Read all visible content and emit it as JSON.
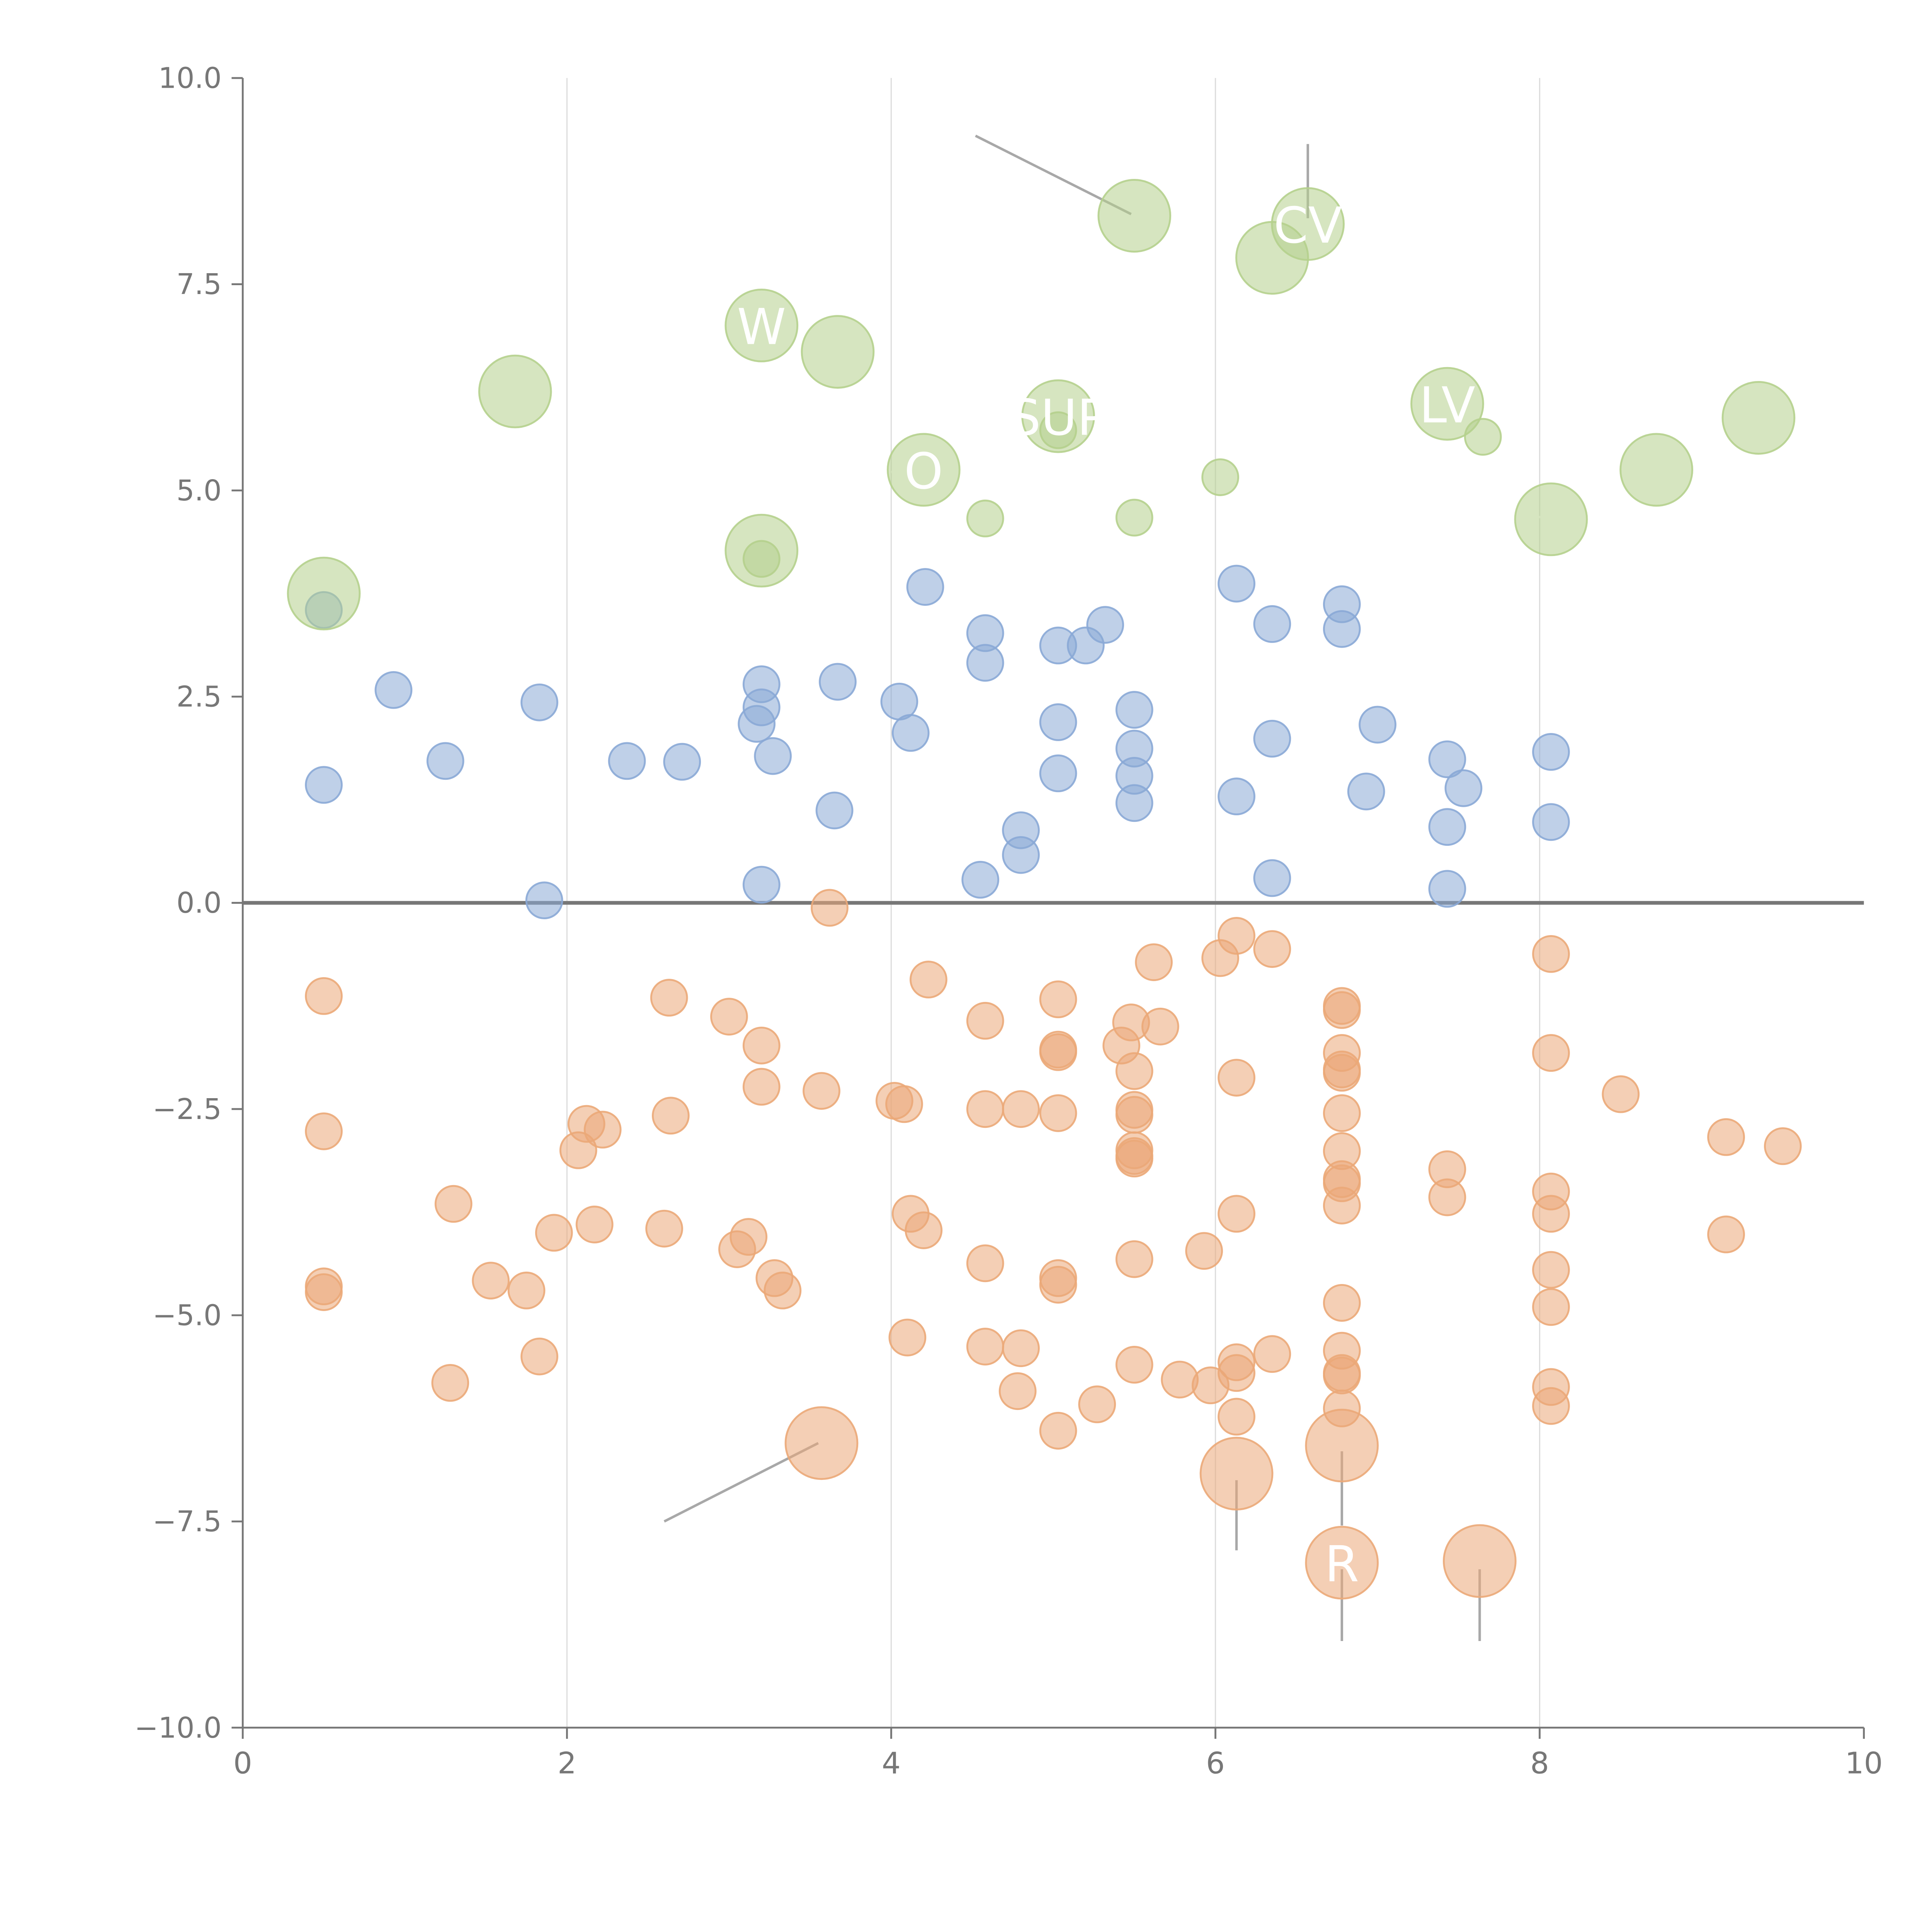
{
  "chart_data": {
    "type": "scatter",
    "title": "",
    "xlabel": "",
    "ylabel": "",
    "xlim": [
      0,
      10
    ],
    "ylim": [
      -10,
      10
    ],
    "x_ticks": [
      "0",
      "2",
      "4",
      "6",
      "8",
      "10"
    ],
    "y_ticks": [
      "−10.0",
      "−7.5",
      "−5.0",
      "−2.5",
      "0.0",
      "2.5",
      "5.0",
      "7.5",
      "10.0"
    ],
    "vertical_gridlines_at": [
      2,
      4,
      6,
      8
    ],
    "zero_line": true,
    "colors": {
      "blue": "#8aa9d6",
      "orange": "#eba878",
      "green": "#b5d08d",
      "axis": "#777777",
      "grid": "#dddddd",
      "zero": "#777777",
      "leader": "#999999"
    },
    "series": [
      {
        "color_key": "blue",
        "points": [
          [
            0.5,
            3.55
          ],
          [
            0.5,
            1.43
          ],
          [
            0.93,
            2.58
          ],
          [
            1.25,
            1.72
          ],
          [
            1.83,
            2.43
          ],
          [
            1.86,
            0.03
          ],
          [
            2.37,
            1.72
          ],
          [
            2.71,
            1.71
          ],
          [
            3.17,
            2.17
          ],
          [
            3.2,
            2.65
          ],
          [
            3.2,
            2.37
          ],
          [
            3.2,
            0.22
          ],
          [
            3.27,
            1.78
          ],
          [
            3.65,
            1.12
          ],
          [
            3.67,
            2.68
          ],
          [
            4.05,
            2.44
          ],
          [
            4.12,
            2.06
          ],
          [
            4.21,
            3.83
          ],
          [
            4.55,
            0.28
          ],
          [
            4.58,
            3.27
          ],
          [
            4.58,
            2.91
          ],
          [
            4.8,
            0.88
          ],
          [
            4.8,
            0.58
          ],
          [
            5.03,
            3.12
          ],
          [
            5.03,
            2.19
          ],
          [
            5.03,
            1.57
          ],
          [
            5.2,
            3.12
          ],
          [
            5.32,
            3.37
          ],
          [
            5.5,
            2.34
          ],
          [
            5.5,
            1.87
          ],
          [
            5.5,
            1.54
          ],
          [
            5.5,
            1.21
          ],
          [
            6.13,
            3.87
          ],
          [
            6.13,
            1.29
          ],
          [
            6.35,
            3.38
          ],
          [
            6.35,
            1.99
          ],
          [
            6.35,
            0.3
          ],
          [
            6.78,
            3.62
          ],
          [
            6.78,
            3.32
          ],
          [
            6.93,
            1.35
          ],
          [
            7.0,
            2.16
          ],
          [
            7.43,
            1.74
          ],
          [
            7.43,
            0.92
          ],
          [
            7.43,
            0.17
          ],
          [
            7.53,
            1.39
          ],
          [
            8.07,
            1.83
          ],
          [
            8.07,
            0.98
          ]
        ]
      },
      {
        "color_key": "orange",
        "points": [
          [
            0.5,
            -1.13
          ],
          [
            0.5,
            -2.77
          ],
          [
            0.5,
            -4.65
          ],
          [
            0.5,
            -4.72
          ],
          [
            1.28,
            -5.82
          ],
          [
            1.3,
            -3.65
          ],
          [
            1.53,
            -4.58
          ],
          [
            1.75,
            -4.7
          ],
          [
            1.83,
            -5.5
          ],
          [
            1.92,
            -4.0
          ],
          [
            2.07,
            -3.0
          ],
          [
            2.12,
            -2.68
          ],
          [
            2.17,
            -3.9
          ],
          [
            2.22,
            -2.75
          ],
          [
            2.6,
            -3.95
          ],
          [
            2.63,
            -1.15
          ],
          [
            2.64,
            -2.58
          ],
          [
            3.0,
            -1.38
          ],
          [
            3.05,
            -4.2
          ],
          [
            3.12,
            -4.05
          ],
          [
            3.2,
            -1.73
          ],
          [
            3.2,
            -2.23
          ],
          [
            3.28,
            -4.55
          ],
          [
            3.33,
            -4.7
          ],
          [
            3.57,
            -2.28
          ],
          [
            3.62,
            -0.06
          ],
          [
            4.02,
            -2.4
          ],
          [
            4.08,
            -2.44
          ],
          [
            4.1,
            -5.27
          ],
          [
            4.12,
            -3.77
          ],
          [
            4.2,
            -3.97
          ],
          [
            4.23,
            -0.93
          ],
          [
            4.58,
            -1.43
          ],
          [
            4.58,
            -2.5
          ],
          [
            4.58,
            -4.37
          ],
          [
            4.58,
            -5.38
          ],
          [
            4.78,
            -5.92
          ],
          [
            4.8,
            -2.5
          ],
          [
            4.8,
            -5.4
          ],
          [
            5.03,
            -1.17
          ],
          [
            5.03,
            -1.78
          ],
          [
            5.03,
            -1.81
          ],
          [
            5.03,
            -2.55
          ],
          [
            5.03,
            -4.55
          ],
          [
            5.03,
            -4.63
          ],
          [
            5.03,
            -6.4
          ],
          [
            5.27,
            -6.08
          ],
          [
            5.42,
            -1.73
          ],
          [
            5.48,
            -1.45
          ],
          [
            5.5,
            -2.04
          ],
          [
            5.5,
            -2.51
          ],
          [
            5.5,
            -2.57
          ],
          [
            5.5,
            -3.0
          ],
          [
            5.5,
            -3.07
          ],
          [
            5.5,
            -3.1
          ],
          [
            5.5,
            -4.32
          ],
          [
            5.5,
            -5.6
          ],
          [
            5.62,
            -0.72
          ],
          [
            5.66,
            -1.5
          ],
          [
            5.78,
            -5.78
          ],
          [
            5.93,
            -4.22
          ],
          [
            5.97,
            -5.85
          ],
          [
            6.03,
            -0.67
          ],
          [
            6.13,
            -0.4
          ],
          [
            6.13,
            -2.12
          ],
          [
            6.13,
            -3.77
          ],
          [
            6.13,
            -5.57
          ],
          [
            6.13,
            -5.7
          ],
          [
            6.13,
            -6.23
          ],
          [
            6.35,
            -0.56
          ],
          [
            6.35,
            -5.47
          ],
          [
            6.78,
            -1.25
          ],
          [
            6.78,
            -1.3
          ],
          [
            6.78,
            -1.82
          ],
          [
            6.78,
            -2.02
          ],
          [
            6.78,
            -2.06
          ],
          [
            6.78,
            -2.55
          ],
          [
            6.78,
            -3.01
          ],
          [
            6.78,
            -3.35
          ],
          [
            6.78,
            -3.4
          ],
          [
            6.78,
            -3.67
          ],
          [
            6.78,
            -4.85
          ],
          [
            6.78,
            -5.43
          ],
          [
            6.78,
            -5.7
          ],
          [
            6.78,
            -5.73
          ],
          [
            6.78,
            -6.13
          ],
          [
            7.43,
            -3.23
          ],
          [
            7.43,
            -3.57
          ],
          [
            8.07,
            -0.62
          ],
          [
            8.07,
            -1.82
          ],
          [
            8.07,
            -3.5
          ],
          [
            8.07,
            -3.77
          ],
          [
            8.07,
            -4.45
          ],
          [
            8.07,
            -4.9
          ],
          [
            8.07,
            -5.87
          ],
          [
            8.07,
            -6.1
          ],
          [
            8.5,
            -2.32
          ],
          [
            9.15,
            -2.84
          ],
          [
            9.15,
            -4.02
          ],
          [
            9.5,
            -2.95
          ]
        ]
      },
      {
        "color_key": "green",
        "points": [
          [
            3.2,
            4.17
          ],
          [
            4.58,
            4.66
          ],
          [
            5.03,
            5.73
          ],
          [
            5.5,
            4.67
          ],
          [
            6.03,
            5.16
          ],
          [
            7.65,
            5.65
          ]
        ]
      }
    ],
    "highlights": [
      {
        "color_key": "green",
        "x": 0.5,
        "y": 3.75,
        "label": "",
        "leader": [
          0.52,
          3.8,
          0.72,
          3.9
        ]
      },
      {
        "color_key": "green",
        "x": 1.68,
        "y": 6.2,
        "label": "",
        "leader": [
          1.48,
          6.12,
          1.65,
          6.2
        ]
      },
      {
        "color_key": "green",
        "x": 3.2,
        "y": 7.0,
        "label": "W",
        "leader": [
          3.15,
          7.2,
          3.05,
          7.07
        ]
      },
      {
        "color_key": "green",
        "x": 3.67,
        "y": 6.68,
        "label": "",
        "leader": [
          3.7,
          7.02,
          3.67,
          6.7
        ]
      },
      {
        "color_key": "green",
        "x": 3.2,
        "y": 4.27,
        "label": "",
        "leader": [
          3.05,
          4.5,
          3.2,
          4.27
        ]
      },
      {
        "color_key": "green",
        "x": 4.2,
        "y": 5.25,
        "label": "O",
        "leader": [
          4.0,
          5.22,
          4.17,
          5.3
        ]
      },
      {
        "color_key": "green",
        "x": 5.5,
        "y": 8.33,
        "label": "",
        "leader": [
          4.52,
          9.3,
          5.48,
          8.35
        ]
      },
      {
        "color_key": "green",
        "x": 5.03,
        "y": 5.9,
        "label": "SUP",
        "leader": null
      },
      {
        "color_key": "green",
        "x": 6.35,
        "y": 7.82,
        "label": "",
        "leader": [
          6.38,
          7.82,
          6.55,
          7.75
        ]
      },
      {
        "color_key": "green",
        "x": 6.57,
        "y": 8.23,
        "label": "CV",
        "leader": [
          6.57,
          9.2,
          6.57,
          8.3
        ]
      },
      {
        "color_key": "green",
        "x": 7.43,
        "y": 6.05,
        "label": "LV",
        "leader": null
      },
      {
        "color_key": "green",
        "x": 8.07,
        "y": 4.65,
        "label": "",
        "leader": [
          7.85,
          4.7,
          8.05,
          4.67
        ]
      },
      {
        "color_key": "green",
        "x": 8.72,
        "y": 5.25,
        "label": "",
        "leader": [
          8.72,
          5.05,
          8.72,
          5.25
        ]
      },
      {
        "color_key": "green",
        "x": 9.35,
        "y": 5.88,
        "label": "",
        "leader": [
          9.25,
          6.05,
          9.35,
          5.88
        ]
      },
      {
        "color_key": "orange",
        "x": 3.57,
        "y": -6.55,
        "label": "",
        "leader": [
          2.6,
          -7.5,
          3.55,
          -6.55
        ]
      },
      {
        "color_key": "orange",
        "x": 6.13,
        "y": -6.92,
        "label": "",
        "leader": [
          6.13,
          -7.85,
          6.13,
          -7.0
        ]
      },
      {
        "color_key": "orange",
        "x": 6.78,
        "y": -6.58,
        "label": "",
        "leader": [
          6.78,
          -7.55,
          6.78,
          -6.65
        ]
      },
      {
        "color_key": "orange",
        "x": 6.78,
        "y": -8.0,
        "label": "R",
        "leader": [
          6.78,
          -8.95,
          6.78,
          -8.08
        ]
      },
      {
        "color_key": "orange",
        "x": 7.63,
        "y": -7.98,
        "label": "",
        "leader": [
          7.63,
          -8.95,
          7.63,
          -8.08
        ]
      }
    ]
  }
}
